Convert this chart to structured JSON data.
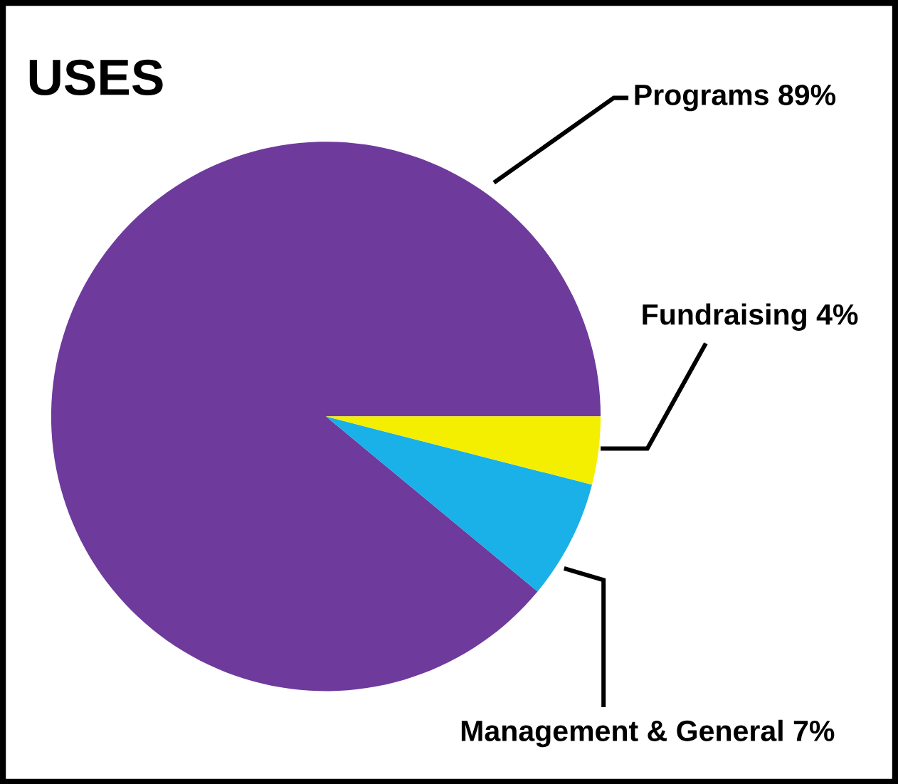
{
  "chart_data": {
    "type": "pie",
    "title": "USES",
    "categories": [
      "Programs",
      "Management & General",
      "Fundraising"
    ],
    "values": [
      89,
      7,
      4
    ],
    "value_labels": [
      "89%",
      "7%",
      "4%"
    ],
    "colors": [
      "#6e3a9c",
      "#1ab0e8",
      "#f4ee00"
    ]
  }
}
